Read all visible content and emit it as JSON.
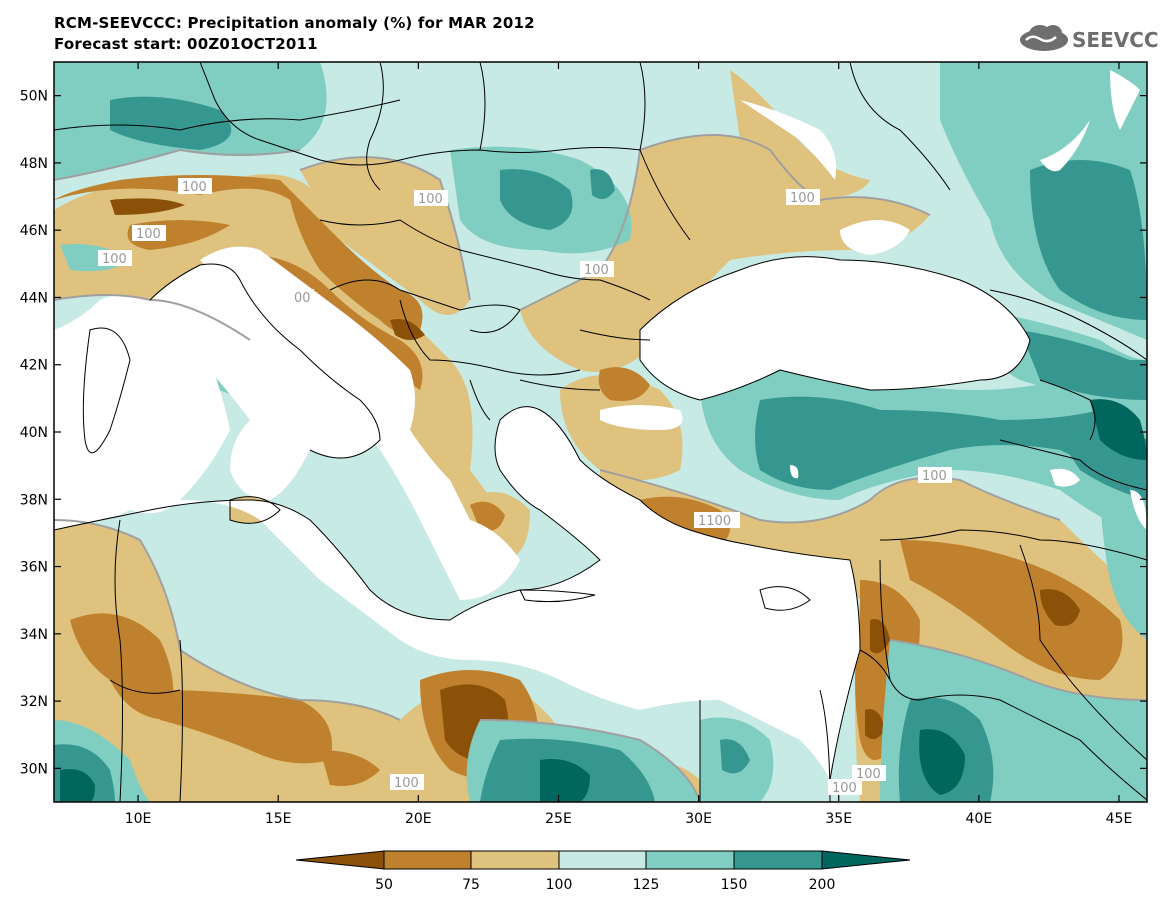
{
  "header": {
    "title": "RCM-SEEVCCC: Precipitation anomaly (%) for MAR 2012",
    "subtitle": "Forecast start: 00Z01OCT2011",
    "logo_text": "SEEVCCC"
  },
  "colors": {
    "class_lt50": "#8c5109",
    "class_50_75": "#bf812d",
    "class_75_100": "#dfc27d",
    "class_100_125": "#c7eae5",
    "class_125_150": "#80cdc1",
    "class_150_200": "#35978f",
    "class_gt200": "#01665e",
    "sea": "#ffffff",
    "contour": "#a0a0a0",
    "border": "#000000"
  },
  "map": {
    "lon_range": [
      7,
      46
    ],
    "lat_range": [
      29,
      51
    ],
    "lon_ticks": [
      "10E",
      "15E",
      "20E",
      "25E",
      "30E",
      "35E",
      "40E",
      "45E"
    ],
    "lat_ticks": [
      "30N",
      "32N",
      "34N",
      "36N",
      "38N",
      "40N",
      "42N",
      "44N",
      "46N",
      "48N",
      "50N"
    ],
    "contour_labels": [
      "100",
      "100",
      "100",
      "100",
      "100",
      "100",
      "00",
      "100",
      "1100",
      "100",
      "100",
      "100"
    ]
  },
  "colorbar": {
    "labels": [
      "50",
      "75",
      "100",
      "125",
      "150",
      "200"
    ]
  }
}
